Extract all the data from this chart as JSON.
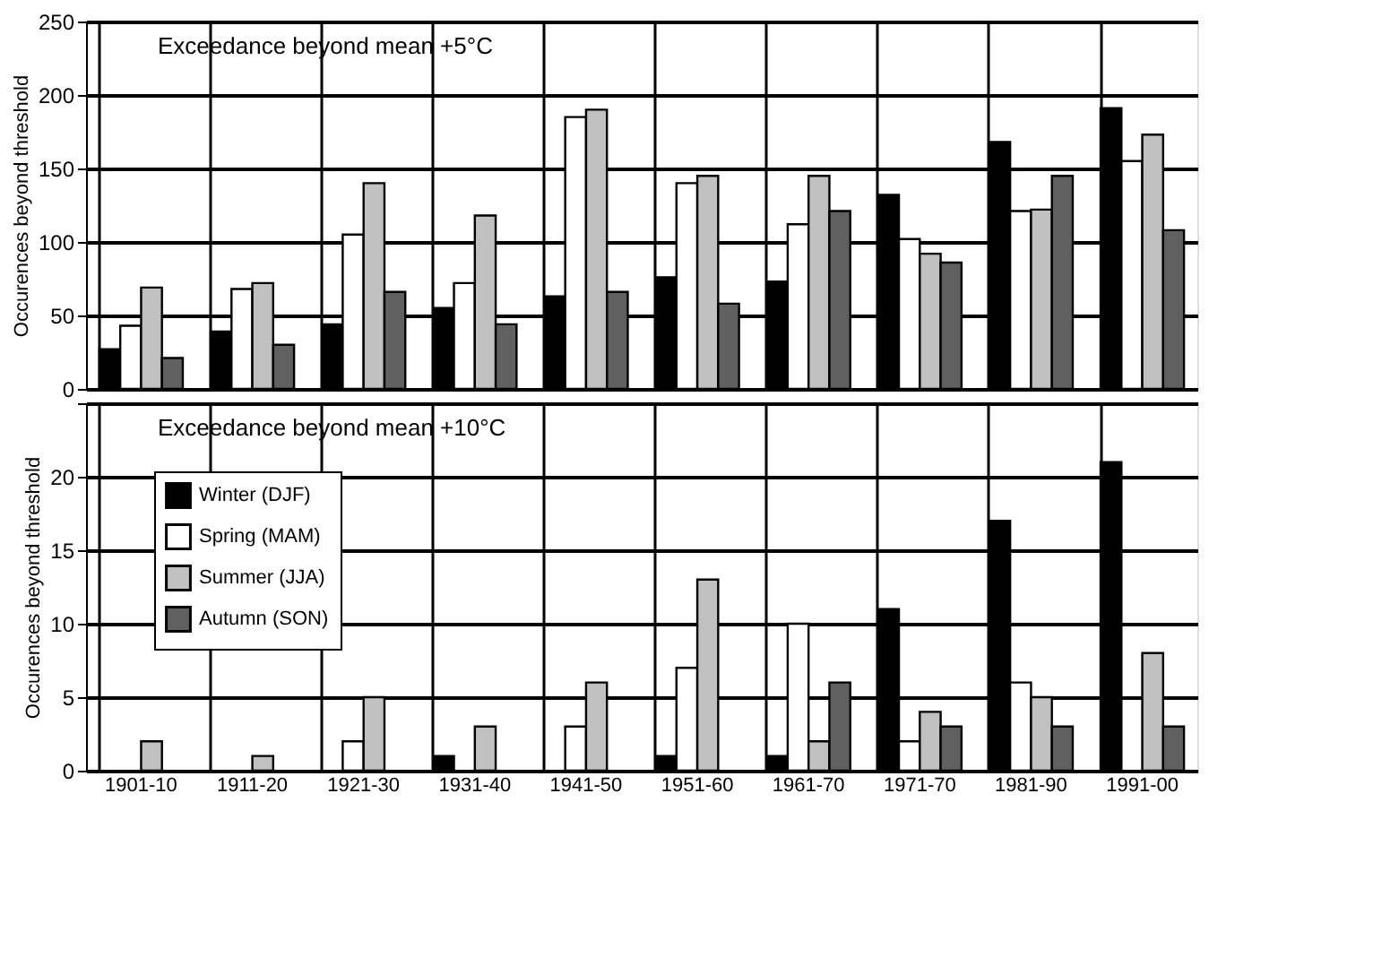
{
  "chart_data": [
    {
      "type": "bar",
      "title": "Exceedance beyond mean +5°C",
      "ylabel": "Occurences beyond threshold",
      "categories": [
        "1901-10",
        "1911-20",
        "1921-30",
        "1931-40",
        "1941-50",
        "1951-60",
        "1961-70",
        "1971-70",
        "1981-90",
        "1991-00"
      ],
      "ylim": [
        0,
        250
      ],
      "yticks": [
        0,
        50,
        100,
        150,
        200,
        250
      ],
      "grid": true,
      "legend": false,
      "tick_labels": "y",
      "series": [
        {
          "color": "#000000",
          "values": [
            27,
            39,
            44,
            55,
            63,
            76,
            73,
            132,
            168,
            191
          ]
        },
        {
          "color": "#ffffff",
          "values": [
            43,
            68,
            105,
            72,
            185,
            140,
            112,
            102,
            121,
            155
          ]
        },
        {
          "color": "#c0c0c0",
          "values": [
            69,
            72,
            140,
            118,
            190,
            145,
            145,
            92,
            122,
            173
          ]
        },
        {
          "color": "#606060",
          "values": [
            21,
            30,
            66,
            44,
            66,
            58,
            121,
            86,
            145,
            108
          ]
        }
      ]
    },
    {
      "type": "bar",
      "title": "Exceedance beyond mean +10°C",
      "ylabel": "Occurences beyond threshold",
      "categories": [
        "1901-10",
        "1911-20",
        "1921-30",
        "1931-40",
        "1941-50",
        "1951-60",
        "1961-70",
        "1971-70",
        "1981-90",
        "1991-00"
      ],
      "ylim": [
        0,
        25
      ],
      "yticks": [
        0,
        5,
        10,
        15,
        20,
        {
          "value": 25,
          "label": null
        }
      ],
      "grid": true,
      "legend": "top left",
      "series": [
        {
          "name": "Winter (DJF)",
          "color": "#000000",
          "values": [
            0,
            0,
            0,
            1,
            0,
            1,
            1,
            11,
            17,
            21
          ]
        },
        {
          "name": "Spring (MAM)",
          "color": "#ffffff",
          "values": [
            0,
            0,
            2,
            0,
            3,
            7,
            10,
            2,
            6,
            0
          ]
        },
        {
          "name": "Summer (JJA)",
          "color": "#c0c0c0",
          "values": [
            2,
            1,
            5,
            3,
            6,
            13,
            2,
            4,
            5,
            8
          ]
        },
        {
          "name": "Autumn (SON)",
          "color": "#606060",
          "values": [
            0,
            0,
            0,
            0,
            0,
            0,
            6,
            3,
            3,
            3
          ]
        }
      ]
    }
  ]
}
